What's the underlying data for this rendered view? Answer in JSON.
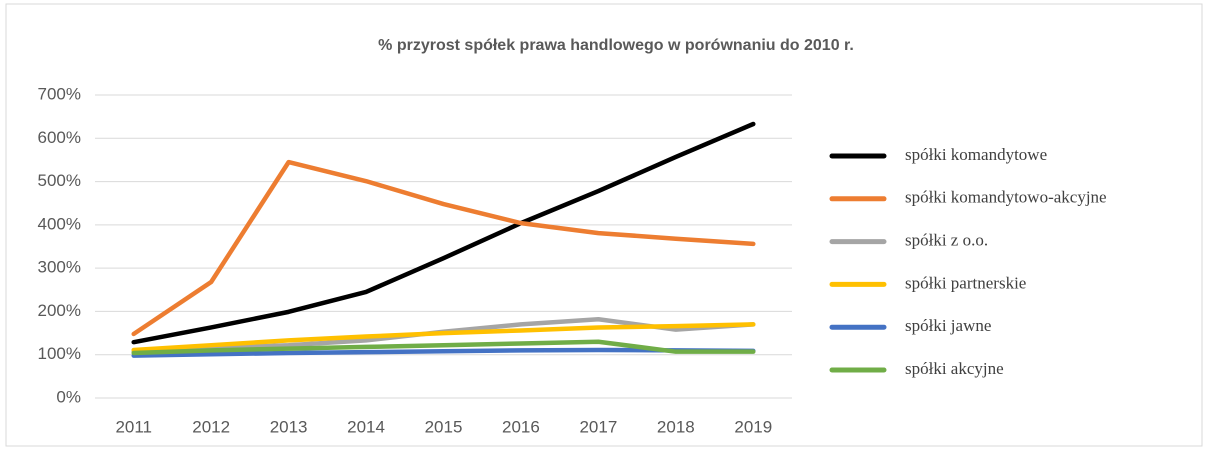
{
  "chart_data": {
    "type": "line",
    "title": "% przyrost spółek prawa handlowego w porównaniu do 2010 r.",
    "categories": [
      "2011",
      "2012",
      "2013",
      "2014",
      "2015",
      "2016",
      "2017",
      "2018",
      "2019"
    ],
    "series": [
      {
        "name": "spółki komandytowe",
        "color": "#000000",
        "values": [
          129,
          163,
          199,
          245,
          323,
          404,
          478,
          557,
          633
        ]
      },
      {
        "name": "spółki komandytowo-akcyjne",
        "color": "#ed7d31",
        "values": [
          148,
          268,
          545,
          501,
          448,
          404,
          381,
          368,
          356
        ]
      },
      {
        "name": "spółki z o.o.",
        "color": "#a5a5a5",
        "values": [
          107,
          115,
          122,
          133,
          153,
          170,
          182,
          158,
          170
        ]
      },
      {
        "name": "spółki partnerskie",
        "color": "#ffc000",
        "values": [
          111,
          122,
          133,
          142,
          150,
          156,
          163,
          166,
          170
        ]
      },
      {
        "name": "spółki jawne",
        "color": "#4472c4",
        "values": [
          98,
          101,
          104,
          106,
          108,
          110,
          111,
          110,
          109
        ]
      },
      {
        "name": "spółki akcyjne",
        "color": "#70ad47",
        "values": [
          104,
          110,
          114,
          118,
          122,
          126,
          130,
          107,
          107
        ]
      }
    ],
    "ylim": [
      0,
      700
    ],
    "yticks": [
      {
        "value": 0,
        "label": "0%"
      },
      {
        "value": 100,
        "label": "100%"
      },
      {
        "value": 200,
        "label": "200%"
      },
      {
        "value": 300,
        "label": "300%"
      },
      {
        "value": 400,
        "label": "400%"
      },
      {
        "value": 500,
        "label": "500%"
      },
      {
        "value": 600,
        "label": "600%"
      },
      {
        "value": 700,
        "label": "700%"
      }
    ],
    "grid": true,
    "legend": "right"
  }
}
